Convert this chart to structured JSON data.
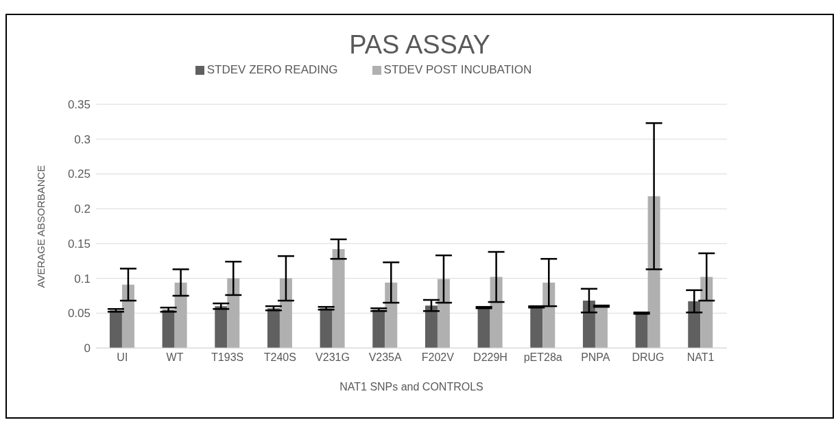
{
  "chart_data": {
    "type": "bar",
    "title": "PAS ASSAY",
    "xlabel": "NAT1 SNPs and CONTROLS",
    "ylabel": "AVERAGE ABSORBANCE",
    "categories": [
      "UI",
      "WT",
      "T193S",
      "T240S",
      "V231G",
      "V235A",
      "F202V",
      "D229H",
      "pET28a",
      "PNPA",
      "DRUG",
      "NAT1"
    ],
    "series": [
      {
        "name": "STDEV ZERO READING",
        "color": "#606060",
        "values": [
          0.054,
          0.055,
          0.06,
          0.057,
          0.057,
          0.055,
          0.061,
          0.058,
          0.059,
          0.068,
          0.05,
          0.067
        ],
        "errors": [
          0.002,
          0.003,
          0.004,
          0.003,
          0.002,
          0.002,
          0.008,
          0.001,
          0.001,
          0.017,
          0.001,
          0.016
        ]
      },
      {
        "name": "STDEV POST INCUBATION",
        "color": "#b0b0b0",
        "values": [
          0.091,
          0.094,
          0.1,
          0.1,
          0.142,
          0.094,
          0.099,
          0.102,
          0.094,
          0.06,
          0.218,
          0.102
        ],
        "errors": [
          0.023,
          0.019,
          0.024,
          0.032,
          0.014,
          0.029,
          0.034,
          0.036,
          0.034,
          0.001,
          0.105,
          0.034
        ]
      }
    ],
    "ylim": [
      0,
      0.35
    ],
    "yticks": [
      0,
      0.05,
      0.1,
      0.15,
      0.2,
      0.25,
      0.3,
      0.35
    ],
    "grid": "y",
    "legend": "top"
  }
}
